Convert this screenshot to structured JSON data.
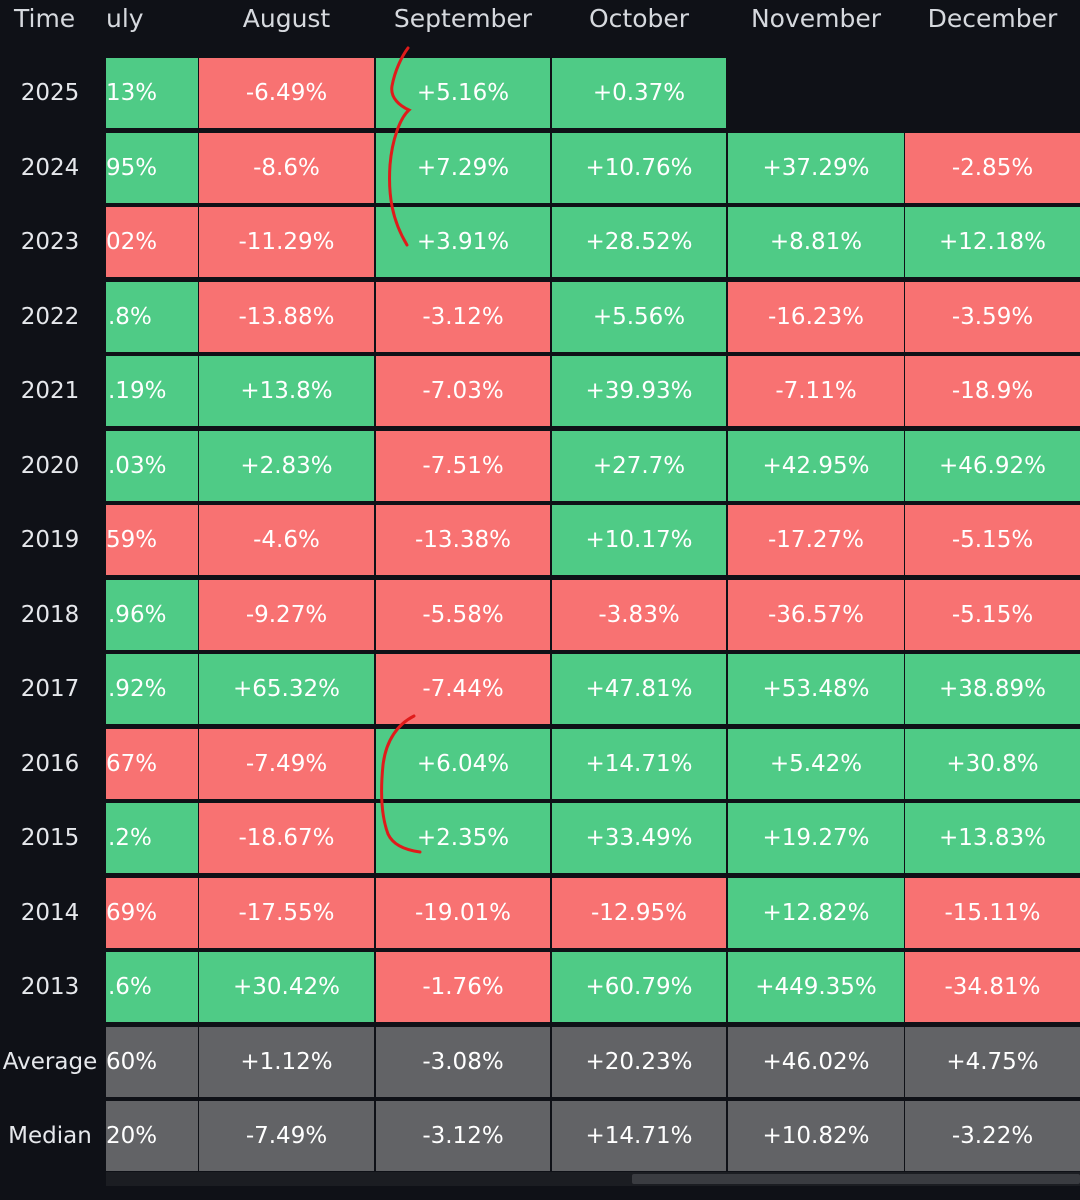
{
  "header": {
    "time_label": "Time",
    "months": [
      "uly",
      "August",
      "September",
      "October",
      "November",
      "December"
    ]
  },
  "rows": [
    {
      "label": "2025",
      "cells": [
        {
          "v": "13%",
          "s": "pos"
        },
        {
          "v": "-6.49%",
          "s": "neg"
        },
        {
          "v": "+5.16%",
          "s": "pos"
        },
        {
          "v": "+0.37%",
          "s": "pos"
        },
        {
          "v": "",
          "s": "empty"
        },
        {
          "v": "",
          "s": "empty"
        }
      ]
    },
    {
      "label": "2024",
      "cells": [
        {
          "v": "95%",
          "s": "pos"
        },
        {
          "v": "-8.6%",
          "s": "neg"
        },
        {
          "v": "+7.29%",
          "s": "pos"
        },
        {
          "v": "+10.76%",
          "s": "pos"
        },
        {
          "v": "+37.29%",
          "s": "pos"
        },
        {
          "v": "-2.85%",
          "s": "neg"
        }
      ]
    },
    {
      "label": "2023",
      "cells": [
        {
          "v": "02%",
          "s": "neg"
        },
        {
          "v": "-11.29%",
          "s": "neg"
        },
        {
          "v": "+3.91%",
          "s": "pos"
        },
        {
          "v": "+28.52%",
          "s": "pos"
        },
        {
          "v": "+8.81%",
          "s": "pos"
        },
        {
          "v": "+12.18%",
          "s": "pos"
        }
      ]
    },
    {
      "label": "2022",
      "cells": [
        {
          "v": ".8%",
          "s": "pos"
        },
        {
          "v": "-13.88%",
          "s": "neg"
        },
        {
          "v": "-3.12%",
          "s": "neg"
        },
        {
          "v": "+5.56%",
          "s": "pos"
        },
        {
          "v": "-16.23%",
          "s": "neg"
        },
        {
          "v": "-3.59%",
          "s": "neg"
        }
      ]
    },
    {
      "label": "2021",
      "cells": [
        {
          "v": ".19%",
          "s": "pos"
        },
        {
          "v": "+13.8%",
          "s": "pos"
        },
        {
          "v": "-7.03%",
          "s": "neg"
        },
        {
          "v": "+39.93%",
          "s": "pos"
        },
        {
          "v": "-7.11%",
          "s": "neg"
        },
        {
          "v": "-18.9%",
          "s": "neg"
        }
      ]
    },
    {
      "label": "2020",
      "cells": [
        {
          "v": ".03%",
          "s": "pos"
        },
        {
          "v": "+2.83%",
          "s": "pos"
        },
        {
          "v": "-7.51%",
          "s": "neg"
        },
        {
          "v": "+27.7%",
          "s": "pos"
        },
        {
          "v": "+42.95%",
          "s": "pos"
        },
        {
          "v": "+46.92%",
          "s": "pos"
        }
      ]
    },
    {
      "label": "2019",
      "cells": [
        {
          "v": "59%",
          "s": "neg"
        },
        {
          "v": "-4.6%",
          "s": "neg"
        },
        {
          "v": "-13.38%",
          "s": "neg"
        },
        {
          "v": "+10.17%",
          "s": "pos"
        },
        {
          "v": "-17.27%",
          "s": "neg"
        },
        {
          "v": "-5.15%",
          "s": "neg"
        }
      ]
    },
    {
      "label": "2018",
      "cells": [
        {
          "v": ".96%",
          "s": "pos"
        },
        {
          "v": "-9.27%",
          "s": "neg"
        },
        {
          "v": "-5.58%",
          "s": "neg"
        },
        {
          "v": "-3.83%",
          "s": "neg"
        },
        {
          "v": "-36.57%",
          "s": "neg"
        },
        {
          "v": "-5.15%",
          "s": "neg"
        }
      ]
    },
    {
      "label": "2017",
      "cells": [
        {
          "v": ".92%",
          "s": "pos"
        },
        {
          "v": "+65.32%",
          "s": "pos"
        },
        {
          "v": "-7.44%",
          "s": "neg"
        },
        {
          "v": "+47.81%",
          "s": "pos"
        },
        {
          "v": "+53.48%",
          "s": "pos"
        },
        {
          "v": "+38.89%",
          "s": "pos"
        }
      ]
    },
    {
      "label": "2016",
      "cells": [
        {
          "v": "67%",
          "s": "neg"
        },
        {
          "v": "-7.49%",
          "s": "neg"
        },
        {
          "v": "+6.04%",
          "s": "pos"
        },
        {
          "v": "+14.71%",
          "s": "pos"
        },
        {
          "v": "+5.42%",
          "s": "pos"
        },
        {
          "v": "+30.8%",
          "s": "pos"
        }
      ]
    },
    {
      "label": "2015",
      "cells": [
        {
          "v": ".2%",
          "s": "pos"
        },
        {
          "v": "-18.67%",
          "s": "neg"
        },
        {
          "v": "+2.35%",
          "s": "pos"
        },
        {
          "v": "+33.49%",
          "s": "pos"
        },
        {
          "v": "+19.27%",
          "s": "pos"
        },
        {
          "v": "+13.83%",
          "s": "pos"
        }
      ]
    },
    {
      "label": "2014",
      "cells": [
        {
          "v": "69%",
          "s": "neg"
        },
        {
          "v": "-17.55%",
          "s": "neg"
        },
        {
          "v": "-19.01%",
          "s": "neg"
        },
        {
          "v": "-12.95%",
          "s": "neg"
        },
        {
          "v": "+12.82%",
          "s": "pos"
        },
        {
          "v": "-15.11%",
          "s": "neg"
        }
      ]
    },
    {
      "label": "2013",
      "cells": [
        {
          "v": ".6%",
          "s": "pos"
        },
        {
          "v": "+30.42%",
          "s": "pos"
        },
        {
          "v": "-1.76%",
          "s": "neg"
        },
        {
          "v": "+60.79%",
          "s": "pos"
        },
        {
          "v": "+449.35%",
          "s": "pos"
        },
        {
          "v": "-34.81%",
          "s": "neg"
        }
      ]
    },
    {
      "label": "Average",
      "cells": [
        {
          "v": "60%",
          "s": "stat"
        },
        {
          "v": "+1.12%",
          "s": "stat"
        },
        {
          "v": "-3.08%",
          "s": "stat"
        },
        {
          "v": "+20.23%",
          "s": "stat"
        },
        {
          "v": "+46.02%",
          "s": "stat"
        },
        {
          "v": "+4.75%",
          "s": "stat"
        }
      ]
    },
    {
      "label": "Median",
      "cells": [
        {
          "v": "20%",
          "s": "stat"
        },
        {
          "v": "-7.49%",
          "s": "stat"
        },
        {
          "v": "-3.12%",
          "s": "stat"
        },
        {
          "v": "+14.71%",
          "s": "stat"
        },
        {
          "v": "+10.82%",
          "s": "stat"
        },
        {
          "v": "-3.22%",
          "s": "stat"
        }
      ]
    }
  ],
  "colors": {
    "positive": "#4fcb86",
    "negative": "#f87272",
    "stat": "#626366",
    "background": "#0f1117",
    "annotation": "#e01b1b"
  }
}
